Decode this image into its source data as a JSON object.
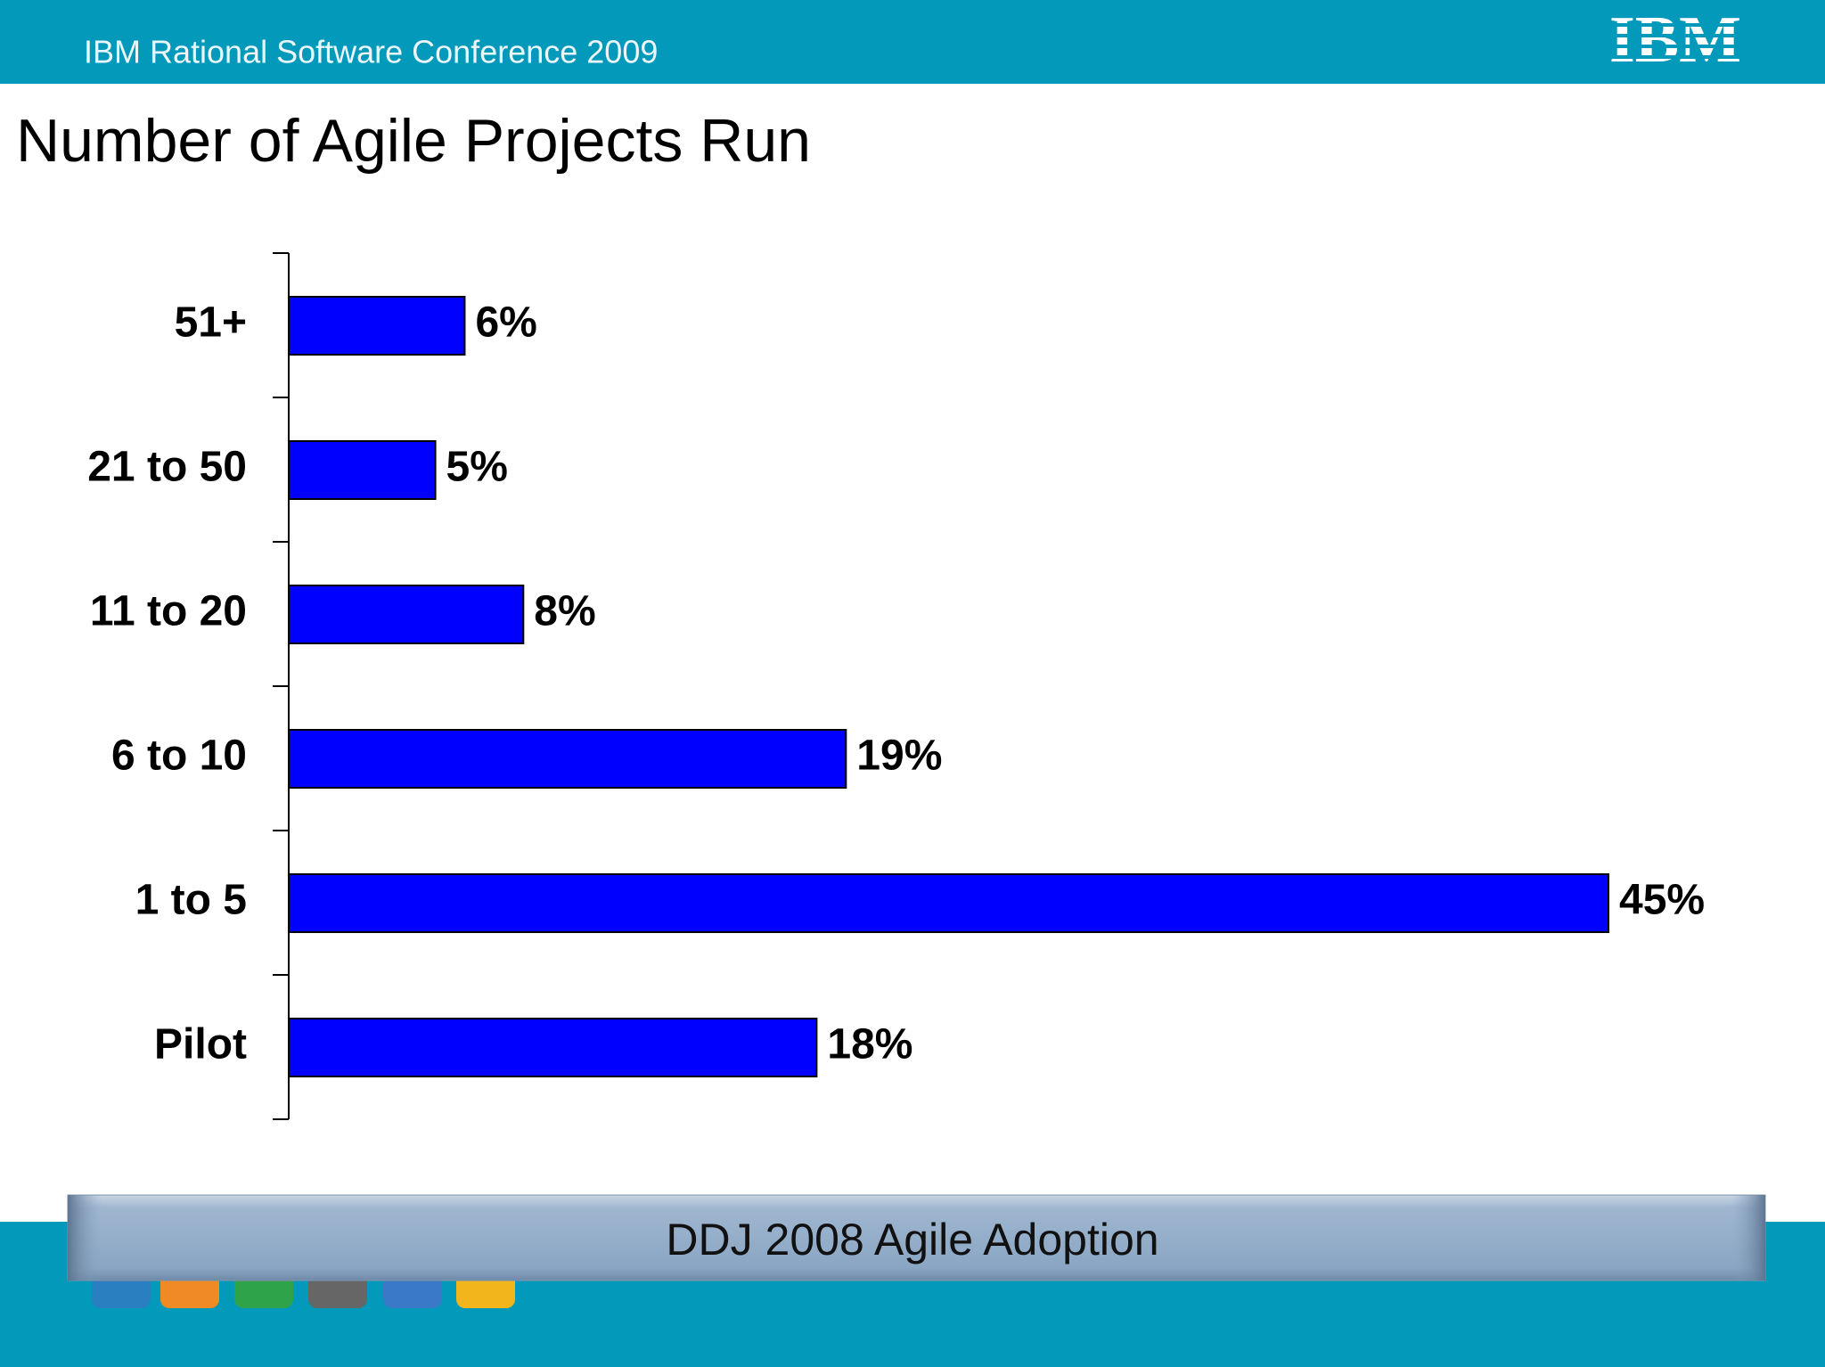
{
  "header": {
    "conference": "IBM Rational Software Conference 2009",
    "logo": "IBM"
  },
  "chart_data": {
    "type": "bar",
    "orientation": "horizontal",
    "title": "Number of Agile Projects Run",
    "categories": [
      "51+",
      "21 to 50",
      "11 to 20",
      "6 to 10",
      "1 to 5",
      "Pilot"
    ],
    "values": [
      6,
      5,
      8,
      19,
      45,
      18
    ],
    "value_labels": [
      "6%",
      "5%",
      "8%",
      "19%",
      "45%",
      "18%"
    ],
    "color": "#0000ff",
    "source": "DDJ 2008 Agile Adoption"
  }
}
